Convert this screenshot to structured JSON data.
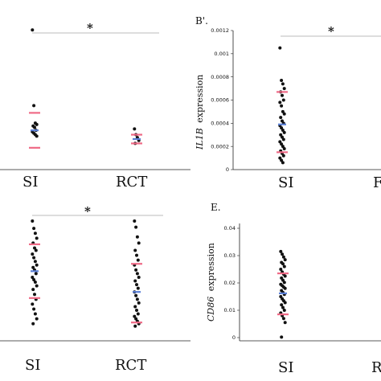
{
  "chart_data": [
    {
      "type": "scatter",
      "panel_label": "",
      "ylabel_gene": "",
      "ylabel": "",
      "categories": [
        "SI",
        "RCT"
      ],
      "significance": "*",
      "series": [
        {
          "values_by_category": {
            "SI": [
              0.96,
              0.44,
              0.32,
              0.31,
              0.3,
              0.29,
              0.27,
              0.26,
              0.25,
              0.24,
              0.23
            ],
            "RCT": [
              0.28,
              0.24,
              0.22,
              0.2,
              0.18
            ]
          }
        }
      ],
      "summary": {
        "SI": {
          "upper": 0.39,
          "mean": 0.27,
          "lower": 0.15
        },
        "RCT": {
          "upper": 0.24,
          "mean": 0.21,
          "lower": 0.18
        }
      }
    },
    {
      "type": "scatter",
      "panel_label": "B'.",
      "ylabel_gene": "IL1B",
      "ylabel": "expression",
      "categories": [
        "SI",
        "RCT"
      ],
      "category_labels_visible": [
        "SI",
        "F"
      ],
      "ylim": [
        0,
        0.0012
      ],
      "yticks": [
        "0.0012",
        "0.001",
        "0.0008",
        "0.0006",
        "0.0004",
        "0.0002",
        "0"
      ],
      "significance": "*",
      "series": [
        {
          "values_by_category": {
            "SI": [
              0.00105,
              0.00077,
              0.00074,
              0.0007,
              0.00067,
              0.00064,
              0.0006,
              0.00058,
              0.00055,
              0.0005,
              0.00048,
              0.00045,
              0.00042,
              0.0004,
              0.00038,
              0.00036,
              0.00034,
              0.00032,
              0.0003,
              0.00028,
              0.00026,
              0.00024,
              0.00022,
              0.0002,
              0.00018,
              0.00016,
              0.00014,
              0.00012,
              0.0001,
              8e-05,
              6e-05
            ]
          }
        }
      ],
      "summary": {
        "SI": {
          "upper": 0.00067,
          "mean": 0.00039,
          "lower": 0.00015
        }
      }
    },
    {
      "type": "scatter",
      "panel_label": "",
      "ylabel_gene": "",
      "ylabel": "",
      "categories": [
        "SI",
        "RCT"
      ],
      "significance": "*",
      "series": [
        {
          "values_by_category": {
            "SI": [
              0.98,
              0.92,
              0.88,
              0.84,
              0.8,
              0.76,
              0.74,
              0.71,
              0.68,
              0.65,
              0.62,
              0.6,
              0.58,
              0.55,
              0.52,
              0.5,
              0.48,
              0.45,
              0.42,
              0.38,
              0.34,
              0.3,
              0.26,
              0.22,
              0.18,
              0.14
            ],
            "RCT": [
              0.98,
              0.93,
              0.85,
              0.8,
              0.74,
              0.7,
              0.66,
              0.62,
              0.58,
              0.55,
              0.52,
              0.49,
              0.46,
              0.43,
              0.4,
              0.37,
              0.34,
              0.31,
              0.28,
              0.25,
              0.22,
              0.2,
              0.18,
              0.16,
              0.14,
              0.12
            ]
          }
        }
      ],
      "summary": {
        "SI": {
          "upper": 0.79,
          "mean": 0.57,
          "lower": 0.35
        },
        "RCT": {
          "upper": 0.63,
          "mean": 0.4,
          "lower": 0.15
        }
      }
    },
    {
      "type": "scatter",
      "panel_label": "E.",
      "ylabel_gene": "CD86",
      "ylabel": "expression",
      "categories": [
        "SI",
        "RCT"
      ],
      "category_labels_visible": [
        "SI",
        "R"
      ],
      "ylim": [
        0,
        0.04
      ],
      "yticks": [
        "0.04",
        "0.03",
        "0.02",
        "0.01",
        "0"
      ],
      "series": [
        {
          "values_by_category": {
            "SI": [
              0.0315,
              0.0305,
              0.0295,
              0.0285,
              0.0275,
              0.027,
              0.026,
              0.025,
              0.024,
              0.0232,
              0.0225,
              0.0218,
              0.021,
              0.0202,
              0.0195,
              0.019,
              0.0185,
              0.018,
              0.0172,
              0.0165,
              0.0158,
              0.015,
              0.0142,
              0.0135,
              0.0128,
              0.012,
              0.011,
              0.01,
              0.009,
              0.008,
              0.007,
              0.0055,
              0.0002
            ]
          }
        }
      ],
      "summary": {
        "SI": {
          "upper": 0.0235,
          "mean": 0.0162,
          "lower": 0.0085
        }
      }
    }
  ],
  "colors": {
    "point": "#111111",
    "bracket": "#ef6a86",
    "mean": "#5a7fd6",
    "sigline": "#bbbbbb",
    "axis": "#222222"
  }
}
